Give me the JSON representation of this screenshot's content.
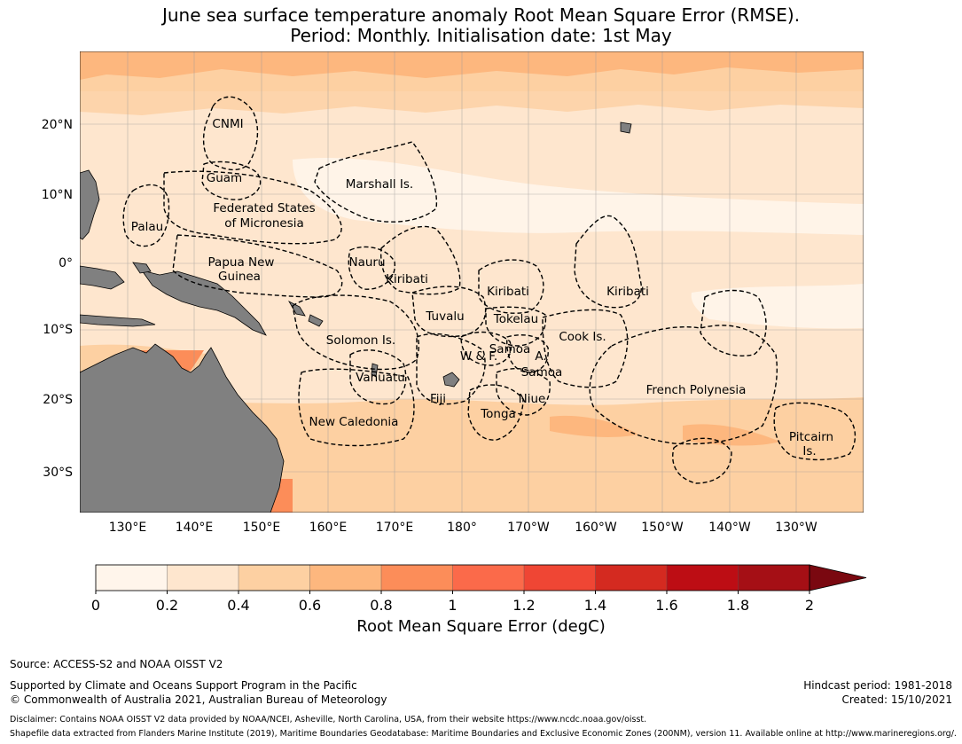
{
  "title": {
    "line1": "June sea surface temperature anomaly Root Mean Square Error (RMSE).",
    "line2": "Period: Monthly. Initialisation date: 1st May"
  },
  "map": {
    "lat_ticks": [
      "20°N",
      "10°N",
      "0°",
      "10°S",
      "20°S",
      "30°S"
    ],
    "lon_ticks": [
      "130°E",
      "140°E",
      "150°E",
      "160°E",
      "170°E",
      "180°",
      "170°W",
      "160°W",
      "150°W",
      "140°W",
      "130°W"
    ],
    "regions": [
      {
        "name": "CNMI"
      },
      {
        "name": "Guam"
      },
      {
        "name": "Marshall Is."
      },
      {
        "name": "Federated States"
      },
      {
        "name": "of Micronesia"
      },
      {
        "name": "Palau"
      },
      {
        "name": "Papua New"
      },
      {
        "name": "Guinea"
      },
      {
        "name": "Nauru"
      },
      {
        "name": "Kiribati"
      },
      {
        "name": "Kiribati"
      },
      {
        "name": "Kiribati"
      },
      {
        "name": "Tuvalu"
      },
      {
        "name": "Tokelau"
      },
      {
        "name": "Solomon Is."
      },
      {
        "name": "Samoa"
      },
      {
        "name": "W & F."
      },
      {
        "name": "A."
      },
      {
        "name": "Samoa"
      },
      {
        "name": "Cook Is."
      },
      {
        "name": "Vanuatu"
      },
      {
        "name": "Fiji"
      },
      {
        "name": "Niue"
      },
      {
        "name": "Tonga"
      },
      {
        "name": "French Polynesia"
      },
      {
        "name": "New Caledonia"
      },
      {
        "name": "Pitcairn"
      },
      {
        "name": "Is."
      }
    ]
  },
  "colorbar": {
    "ticks": [
      "0",
      "0.2",
      "0.4",
      "0.6",
      "0.8",
      "1",
      "1.2",
      "1.4",
      "1.6",
      "1.8",
      "2"
    ],
    "colors": [
      "#fff5eb",
      "#fee6ce",
      "#fdd0a2",
      "#fdb77e",
      "#fc8d59",
      "#fb6a4a",
      "#ef4634",
      "#d42a20",
      "#bd0d14",
      "#a50f15",
      "#7a0810"
    ],
    "label": "Root Mean Square Error (degC)"
  },
  "footer": {
    "source": "Source: ACCESS-S2 and NOAA OISST V2",
    "supported": "Supported by Climate and Oceans Support Program in the Pacific",
    "copyright": "© Commonwealth of Australia 2021, Australian Bureau of Meteorology",
    "hindcast": "Hindcast period: 1981-2018",
    "created": "Created: 15/10/2021",
    "disclaimer": "Disclaimer: Contains NOAA OISST V2 data provided by NOAA/NCEI, Asheville, North Carolina, USA, from their website https://www.ncdc.noaa.gov/oisst.",
    "shapefile": "Shapefile data extracted from Flanders Marine Institute (2019), Maritime Boundaries Geodatabase: Maritime Boundaries and Exclusive Economic Zones (200NM), version 11. Available online at http://www.marineregions.org/."
  }
}
